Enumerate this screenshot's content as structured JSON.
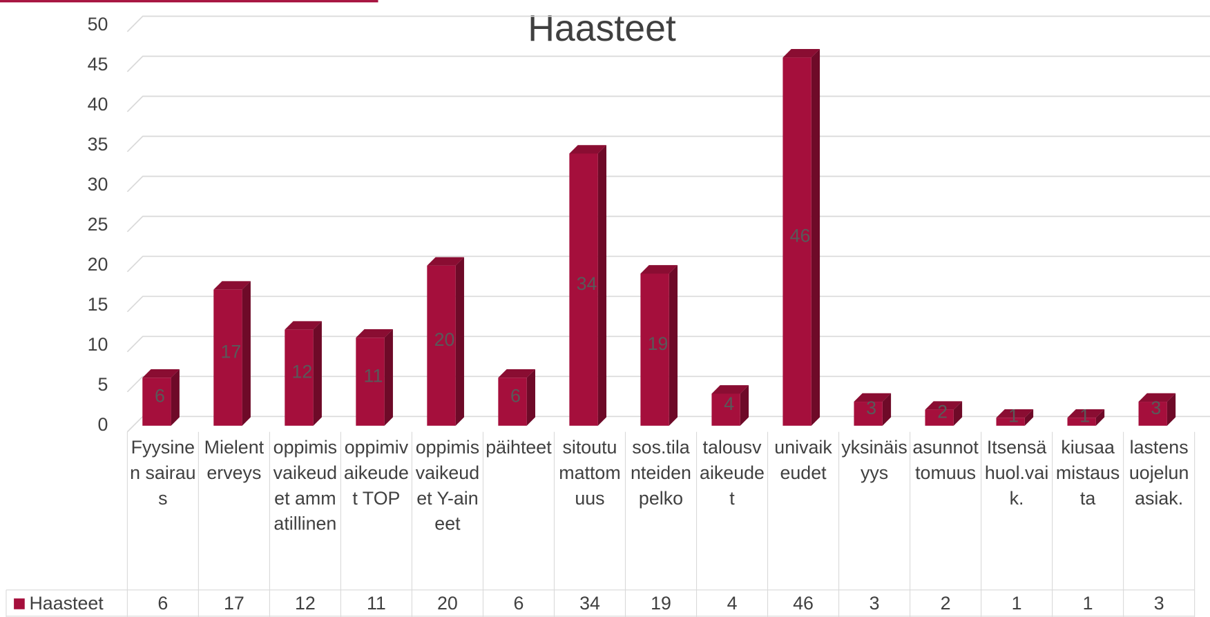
{
  "chart_data": {
    "type": "bar",
    "title": "Haasteet",
    "categories": [
      "Fyysinen sairaus",
      "Mielenterveys",
      "oppimisvaikeudet ammatillinen",
      "oppimivaikeudet TOP",
      "oppimisvaikeudet Y-aineet",
      "päihteet",
      "sitoutumattomuus",
      "sos.tilanteiden pelko",
      "talousvaikeudet",
      "univaikeudet",
      "yksinäisyys",
      "asunnottomuus",
      "Itsensä huol.vaik.",
      "kiusaamistausta",
      "lastensuojelun asiak."
    ],
    "series": [
      {
        "name": "Haasteet",
        "color": "#a50f3c",
        "values": [
          6,
          17,
          12,
          11,
          20,
          6,
          34,
          19,
          4,
          46,
          3,
          2,
          1,
          1,
          3
        ]
      }
    ],
    "ylim": [
      0,
      50
    ],
    "yticks": [
      0,
      5,
      10,
      15,
      20,
      25,
      30,
      35,
      40,
      45,
      50
    ],
    "grid": true,
    "data_table": true
  }
}
